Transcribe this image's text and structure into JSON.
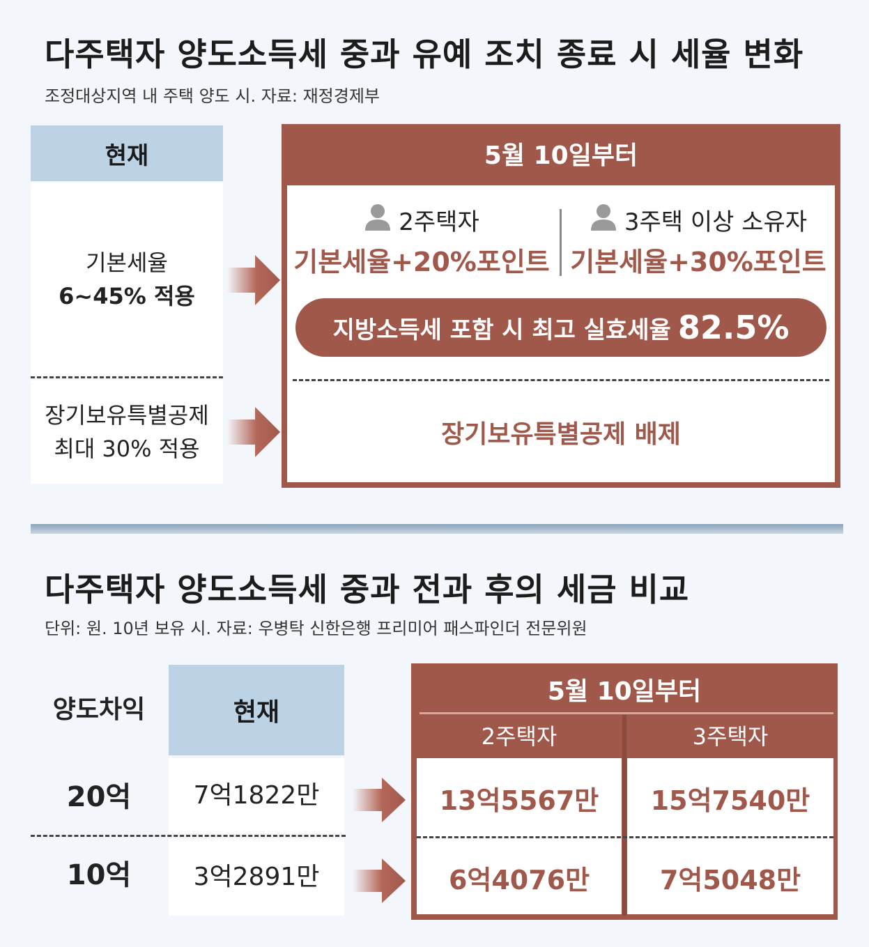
{
  "section1": {
    "title": "다주택자 양도소득세 중과 유예 조치 종료 시 세율 변화",
    "subtitle": "조정대상지역 내 주택 양도 시. 자료: 재정경제부",
    "current": {
      "header": "현재",
      "row1_line1": "기본세율",
      "row1_line2": "6~45% 적용",
      "row2_line1": "장기보유특별공제",
      "row2_line2": "최대 30% 적용"
    },
    "after": {
      "header": "5월 10일부터",
      "two_home_label": "2주택자",
      "two_home_rate": "기본세율+20%포인트",
      "three_home_label": "3주택 이상 소유자",
      "three_home_rate": "기본세율+30%포인트",
      "max_rate_label": "지방소득세 포함 시 최고 실효세율",
      "max_rate_value": "82.5%",
      "deduction": "장기보유특별공제 배제"
    }
  },
  "section2": {
    "title": "다주택자 양도소득세 중과 전과 후의 세금 비교",
    "subtitle": "단위: 원. 10년 보유 시. 자료: 우병탁 신한은행 프리미어 패스파인더 전문위원",
    "gain_header": "양도차익",
    "current_header": "현재",
    "after_header": "5월 10일부터",
    "two_home_header": "2주택자",
    "three_home_header": "3주택자",
    "rows": [
      {
        "gain": "20억",
        "current": "7억1822만",
        "two_home": "13억5567만",
        "three_home": "15억7540만"
      },
      {
        "gain": "10억",
        "current": "3억2891만",
        "two_home": "6억4076만",
        "three_home": "7억5048만"
      }
    ]
  },
  "colors": {
    "accent": "#a0584a",
    "header_blue": "#bcd3e6",
    "background": "#f3f6fa"
  },
  "icons": [
    "person-icon",
    "arrow-right-icon"
  ]
}
